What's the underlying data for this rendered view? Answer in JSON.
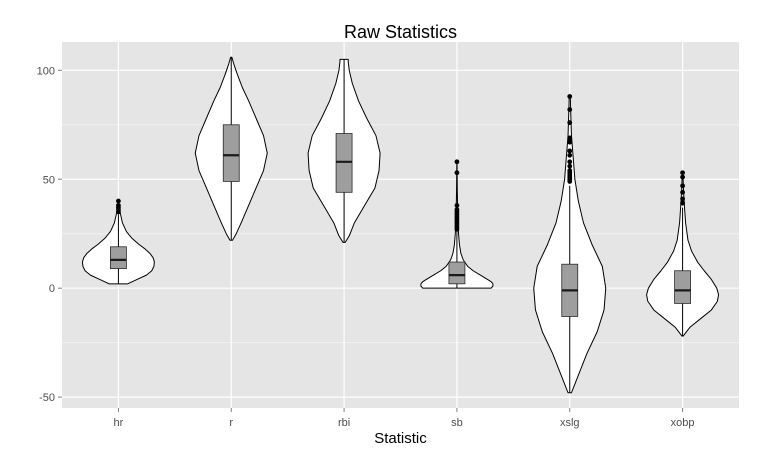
{
  "chart_data": {
    "type": "violin",
    "title": "Raw Statistics",
    "xlabel": "Statistic",
    "ylabel": "",
    "ylim": [
      -55,
      113
    ],
    "yticks": [
      -50,
      0,
      50,
      100
    ],
    "grid": true,
    "legend": "none",
    "categories": [
      "hr",
      "r",
      "rbi",
      "sb",
      "xslg",
      "xobp"
    ],
    "violins": [
      {
        "category": "hr",
        "min": 2,
        "max": 40,
        "box": {
          "q1": 9,
          "median": 13,
          "q3": 19
        },
        "whisker_low": 2,
        "whisker_high": 34,
        "outliers": [
          35,
          36,
          37,
          38,
          40
        ],
        "profile": [
          [
            2,
            0.35
          ],
          [
            4,
            0.7
          ],
          [
            6,
            1.05
          ],
          [
            8,
            1.25
          ],
          [
            10,
            1.33
          ],
          [
            12,
            1.35
          ],
          [
            14,
            1.3
          ],
          [
            16,
            1.18
          ],
          [
            18,
            1.0
          ],
          [
            20,
            0.78
          ],
          [
            23,
            0.5
          ],
          [
            26,
            0.3
          ],
          [
            30,
            0.15
          ],
          [
            35,
            0.06
          ],
          [
            40,
            0.01
          ]
        ]
      },
      {
        "category": "r",
        "min": 22,
        "max": 106,
        "box": {
          "q1": 49,
          "median": 61,
          "q3": 75
        },
        "whisker_low": 22,
        "whisker_high": 106,
        "outliers": [],
        "profile": [
          [
            22,
            0.01
          ],
          [
            25,
            0.04
          ],
          [
            30,
            0.08
          ],
          [
            38,
            0.14
          ],
          [
            46,
            0.2
          ],
          [
            54,
            0.26
          ],
          [
            62,
            0.29
          ],
          [
            70,
            0.26
          ],
          [
            78,
            0.2
          ],
          [
            86,
            0.14
          ],
          [
            92,
            0.09
          ],
          [
            98,
            0.05
          ],
          [
            103,
            0.02
          ],
          [
            106,
            0.005
          ]
        ]
      },
      {
        "category": "rbi",
        "min": 21,
        "max": 105,
        "box": {
          "q1": 44,
          "median": 58,
          "q3": 71
        },
        "whisker_low": 21,
        "whisker_high": 105,
        "outliers": [],
        "profile": [
          [
            21,
            0.01
          ],
          [
            24,
            0.05
          ],
          [
            30,
            0.1
          ],
          [
            38,
            0.2
          ],
          [
            46,
            0.3
          ],
          [
            54,
            0.34
          ],
          [
            62,
            0.35
          ],
          [
            70,
            0.31
          ],
          [
            78,
            0.22
          ],
          [
            86,
            0.14
          ],
          [
            94,
            0.08
          ],
          [
            100,
            0.05
          ],
          [
            104,
            0.04
          ],
          [
            105,
            0.04
          ]
        ]
      },
      {
        "category": "sb",
        "min": 0,
        "max": 58,
        "box": {
          "q1": 2,
          "median": 6,
          "q3": 12
        },
        "whisker_low": 0,
        "whisker_high": 26,
        "outliers": [
          27,
          28,
          29,
          30,
          31,
          32,
          33,
          34,
          35,
          36,
          38,
          53,
          58
        ],
        "profile": [
          [
            0,
            1.9
          ],
          [
            1,
            2.0
          ],
          [
            2,
            2.0
          ],
          [
            3,
            1.9
          ],
          [
            4,
            1.7
          ],
          [
            6,
            1.3
          ],
          [
            8,
            0.9
          ],
          [
            10,
            0.6
          ],
          [
            13,
            0.35
          ],
          [
            16,
            0.22
          ],
          [
            20,
            0.14
          ],
          [
            25,
            0.09
          ],
          [
            30,
            0.06
          ],
          [
            36,
            0.04
          ],
          [
            45,
            0.02
          ],
          [
            58,
            0.005
          ]
        ]
      },
      {
        "category": "xslg",
        "min": -48,
        "max": 88,
        "box": {
          "q1": -13,
          "median": -1,
          "q3": 11
        },
        "whisker_low": -48,
        "whisker_high": 47,
        "outliers": [
          49,
          50,
          51,
          52,
          53,
          54,
          56,
          58,
          61,
          63,
          67,
          68,
          69,
          76,
          82,
          88
        ],
        "profile": [
          [
            -48,
            0.01
          ],
          [
            -44,
            0.03
          ],
          [
            -38,
            0.06
          ],
          [
            -30,
            0.1
          ],
          [
            -20,
            0.16
          ],
          [
            -10,
            0.2
          ],
          [
            0,
            0.21
          ],
          [
            10,
            0.19
          ],
          [
            20,
            0.13
          ],
          [
            30,
            0.08
          ],
          [
            40,
            0.05
          ],
          [
            50,
            0.03
          ],
          [
            60,
            0.02
          ],
          [
            70,
            0.01
          ],
          [
            88,
            0.003
          ]
        ]
      },
      {
        "category": "xobp",
        "min": -22,
        "max": 53,
        "box": {
          "q1": -7,
          "median": -1,
          "q3": 8
        },
        "whisker_low": -22,
        "whisker_high": 37,
        "outliers": [
          39,
          41,
          44,
          47,
          51,
          53
        ],
        "profile": [
          [
            -22,
            0.01
          ],
          [
            -18,
            0.12
          ],
          [
            -14,
            0.3
          ],
          [
            -10,
            0.48
          ],
          [
            -6,
            0.58
          ],
          [
            -3,
            0.6
          ],
          [
            0,
            0.57
          ],
          [
            4,
            0.48
          ],
          [
            8,
            0.36
          ],
          [
            12,
            0.25
          ],
          [
            17,
            0.15
          ],
          [
            22,
            0.09
          ],
          [
            30,
            0.05
          ],
          [
            38,
            0.03
          ],
          [
            45,
            0.015
          ],
          [
            53,
            0.005
          ]
        ]
      }
    ]
  }
}
